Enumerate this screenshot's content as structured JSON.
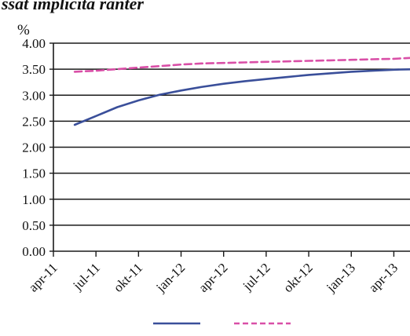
{
  "chart_data": {
    "type": "line",
    "title": "ssat implicita ranter",
    "ylabel": "%",
    "xlabel": "",
    "ylim": [
      0,
      4
    ],
    "yticks": [
      "0.00",
      "0.50",
      "1.00",
      "1.50",
      "2.00",
      "2.50",
      "3.00",
      "3.50",
      "4.00"
    ],
    "categories": [
      "apr-11",
      "jul-11",
      "okt-11",
      "jan-12",
      "apr-12",
      "jul-12",
      "okt-12",
      "jan-13",
      "apr-13"
    ],
    "grid": true,
    "legend_position": "bottom",
    "series": [
      {
        "name": "",
        "color": "#3a4f9a",
        "dash": "solid",
        "x": [
          0.5,
          1,
          1.5,
          2,
          2.5,
          3,
          3.5,
          4,
          4.5,
          5,
          5.5,
          6,
          6.5,
          7,
          7.5,
          8,
          8.5
        ],
        "values": [
          2.43,
          2.6,
          2.77,
          2.9,
          3.01,
          3.09,
          3.16,
          3.22,
          3.27,
          3.31,
          3.35,
          3.39,
          3.42,
          3.45,
          3.47,
          3.49,
          3.5
        ]
      },
      {
        "name": "",
        "color": "#d94fa7",
        "dash": "dashed",
        "x": [
          0.5,
          1,
          1.5,
          2,
          2.5,
          3,
          3.5,
          4,
          4.5,
          5,
          5.5,
          6,
          6.5,
          7,
          7.5,
          8,
          8.5
        ],
        "values": [
          3.45,
          3.47,
          3.5,
          3.53,
          3.56,
          3.59,
          3.61,
          3.62,
          3.63,
          3.64,
          3.65,
          3.66,
          3.67,
          3.68,
          3.69,
          3.7,
          3.72
        ]
      }
    ]
  }
}
